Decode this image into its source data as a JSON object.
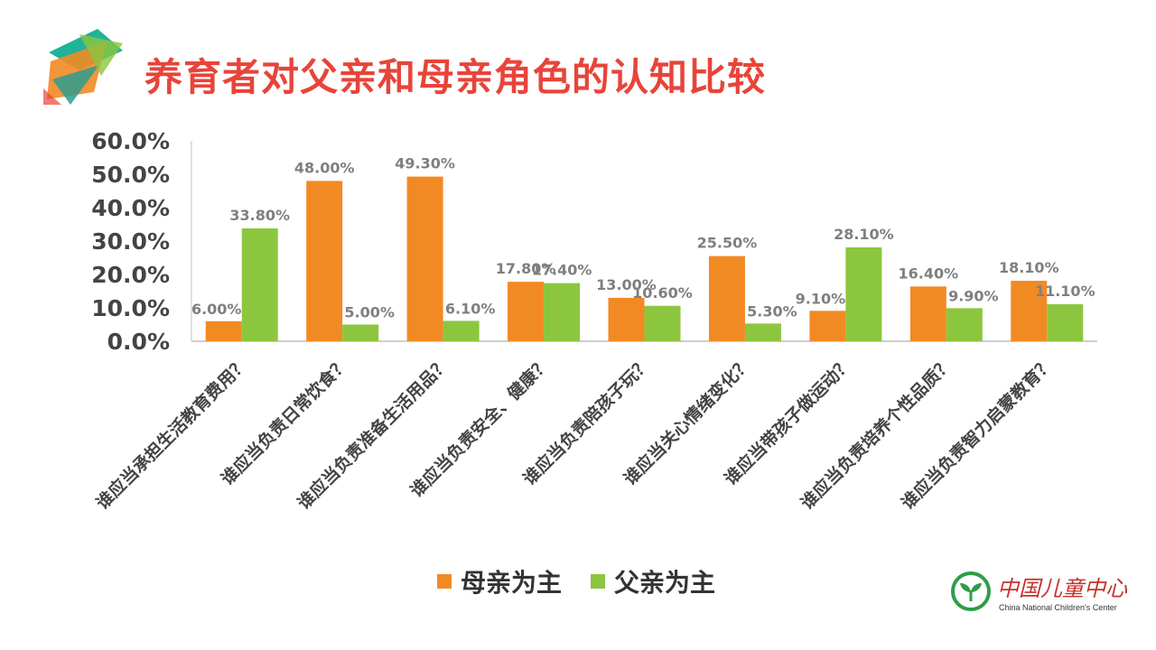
{
  "title": "养育者对父亲和母亲角色的认知比较",
  "colors": {
    "mother": "#f28a24",
    "father": "#8cc63f",
    "title": "#e8443a"
  },
  "chart_data": {
    "type": "bar",
    "title": "养育者对父亲和母亲角色的认知比较",
    "ylim": [
      0,
      60
    ],
    "yticks": [
      "0.0%",
      "10.0%",
      "20.0%",
      "30.0%",
      "40.0%",
      "50.0%",
      "60.0%"
    ],
    "categories": [
      "谁应当承担生活教育费用？",
      "谁应当负责日常饮食？",
      "谁应当负责准备生活用品？",
      "谁应当负责安全、健康？",
      "谁应当负责陪孩子玩？",
      "谁应当关心情绪变化？",
      "谁应当带孩子做运动？",
      "谁应当负责培养个性品质？",
      "谁应当负责智力启蒙教育？"
    ],
    "series": [
      {
        "name": "母亲为主",
        "values": [
          6.0,
          48.0,
          49.3,
          17.8,
          13.0,
          25.5,
          9.1,
          16.4,
          18.1
        ],
        "labels": [
          "6.00%",
          "48.00%",
          "49.30%",
          "17.80%",
          "13.00%",
          "25.50%",
          "9.10%",
          "16.40%",
          "18.10%"
        ]
      },
      {
        "name": "父亲为主",
        "values": [
          33.8,
          5.0,
          6.1,
          17.4,
          10.6,
          5.3,
          28.1,
          9.9,
          11.1
        ],
        "labels": [
          "33.80%",
          "5.00%",
          "6.10%",
          "17.40%",
          "10.60%",
          "5.30%",
          "28.10%",
          "9.90%",
          "11.10%"
        ]
      }
    ],
    "legend": [
      "母亲为主",
      "父亲为主"
    ],
    "legend_position": "bottom"
  },
  "legend": {
    "mother": "母亲为主",
    "father": "父亲为主"
  },
  "logo": {
    "cn": "中国儿童中心",
    "en": "China National Children's Center"
  }
}
